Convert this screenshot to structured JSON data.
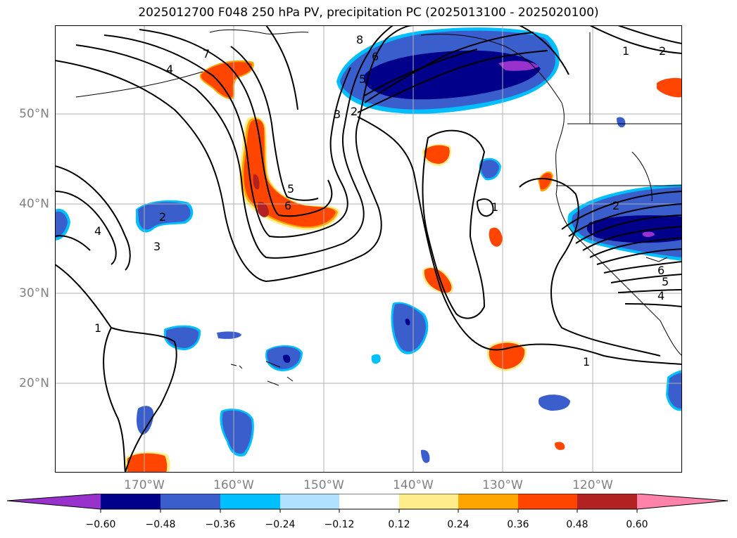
{
  "title": "2025012700 F048 250 hPa PV, precipitation PC (2025013100 - 2025020100)",
  "lat_labels": [
    "50°N",
    "40°N",
    "30°N",
    "20°N"
  ],
  "lon_labels": [
    "170°W",
    "160°W",
    "150°W",
    "140°W",
    "130°W",
    "120°W"
  ],
  "contour_labels": [
    "1",
    "2",
    "3",
    "4",
    "5",
    "6",
    "7",
    "8"
  ],
  "colorbar": {
    "ticks": [
      "−0.60",
      "−0.48",
      "−0.36",
      "−0.24",
      "−0.12",
      "0.12",
      "0.24",
      "0.36",
      "0.48",
      "0.60"
    ],
    "colors": [
      "#9932CC",
      "#00008B",
      "#3A5FCD",
      "#00BFFF",
      "#B0E2FF",
      "#FFFFFF",
      "#FFEC8B",
      "#FFA500",
      "#FF4500",
      "#B22222",
      "#FF82AB"
    ]
  }
}
